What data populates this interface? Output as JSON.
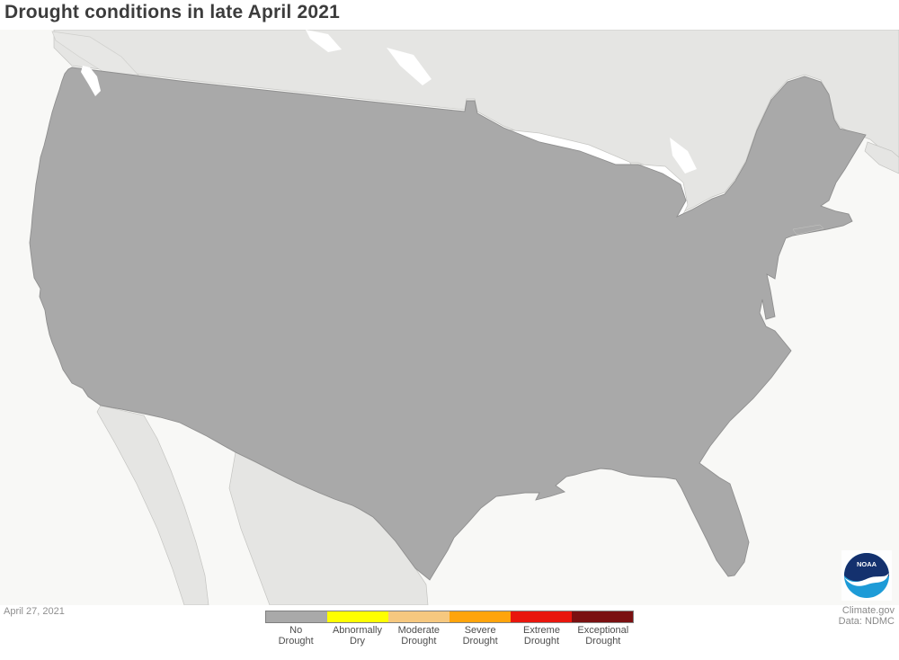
{
  "header": {
    "title": "Drought conditions in late April 2021"
  },
  "map": {
    "description": "Contiguous United States drought conditions choropleth map",
    "date_label": "April 27, 2021",
    "source_line1": "Climate.gov",
    "source_line2": "Data: NDMC",
    "noaa_logo_text": "NOAA"
  },
  "palette": {
    "no_drought": "#a9a9a9",
    "abnormally_dry": "#feff00",
    "moderate_drought": "#f6c87f",
    "severe_drought": "#ffa40b",
    "extreme_drought": "#e9160d",
    "exceptional_drought": "#7a1011",
    "neighbor_land": "#e5e5e3",
    "ocean": "#f8f8f6",
    "lake": "#ffffff",
    "border_line": "#8f8f8f"
  },
  "legend": {
    "categories": [
      {
        "key": "no-drought",
        "label_line1": "No",
        "label_line2": "Drought",
        "color": "#a9a9a9"
      },
      {
        "key": "abnormally-dry",
        "label_line1": "Abnormally",
        "label_line2": "Dry",
        "color": "#feff00"
      },
      {
        "key": "moderate-drought",
        "label_line1": "Moderate",
        "label_line2": "Drought",
        "color": "#f6c87f"
      },
      {
        "key": "severe-drought",
        "label_line1": "Severe",
        "label_line2": "Drought",
        "color": "#ffa40b"
      },
      {
        "key": "extreme-drought",
        "label_line1": "Extreme",
        "label_line2": "Drought",
        "color": "#e9160d"
      },
      {
        "key": "exceptional-drought",
        "label_line1": "Exceptional",
        "label_line2": "Drought",
        "color": "#7a1011"
      }
    ]
  }
}
